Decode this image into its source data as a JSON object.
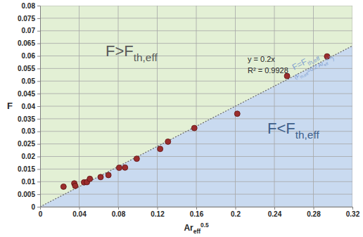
{
  "chart_data": {
    "type": "scatter",
    "x_label": {
      "parts": [
        "Ar",
        {
          "sub": "eff"
        },
        {
          "sup": "0.5"
        }
      ]
    },
    "y_label": {
      "parts": [
        "F"
      ]
    },
    "x": [
      0.024,
      0.035,
      0.036,
      0.045,
      0.048,
      0.051,
      0.062,
      0.07,
      0.081,
      0.087,
      0.099,
      0.123,
      0.131,
      0.158,
      0.202,
      0.253,
      0.294
    ],
    "values": [
      0.008,
      0.0093,
      0.0083,
      0.0097,
      0.0098,
      0.0111,
      0.0118,
      0.0126,
      0.0155,
      0.0156,
      0.0191,
      0.023,
      0.0259,
      0.0313,
      0.037,
      0.052,
      0.0598
    ],
    "color": "#9b2d2d",
    "marker": "circle",
    "trendline": {
      "x": [
        0,
        0.32
      ],
      "values": [
        0,
        0.064
      ],
      "color": "#666666",
      "line_style": "dotted"
    },
    "xlim": [
      0,
      0.32
    ],
    "xticks": [
      0,
      0.04,
      0.08,
      0.12,
      0.16,
      0.2,
      0.24,
      0.28,
      0.32
    ],
    "ylim": [
      0,
      0.08
    ],
    "yticks": [
      0,
      0.005,
      0.01,
      0.015,
      0.02,
      0.025,
      0.03,
      0.035,
      0.04,
      0.045,
      0.05,
      0.055,
      0.06,
      0.065,
      0.07,
      0.075,
      0.08
    ],
    "grid": true,
    "annotations": [
      {
        "parts": [
          "F>F",
          {
            "sub": "th,eff"
          }
        ]
      },
      {
        "parts": [
          "F<F",
          {
            "sub": "th,eff"
          }
        ]
      },
      {
        "parts": [
          "y = 0.2x"
        ]
      },
      {
        "parts": [
          "R² = 0.9928"
        ]
      },
      {
        "parts": [
          "F=F",
          {
            "sub": "th,eff"
          }
        ]
      },
      {
        "parts": [
          "(F",
          {
            "sub": "th,eff"
          },
          "=0.2 Ar",
          {
            "sub": "eff"
          },
          {
            "sup": "0.5"
          },
          ")"
        ]
      }
    ]
  }
}
